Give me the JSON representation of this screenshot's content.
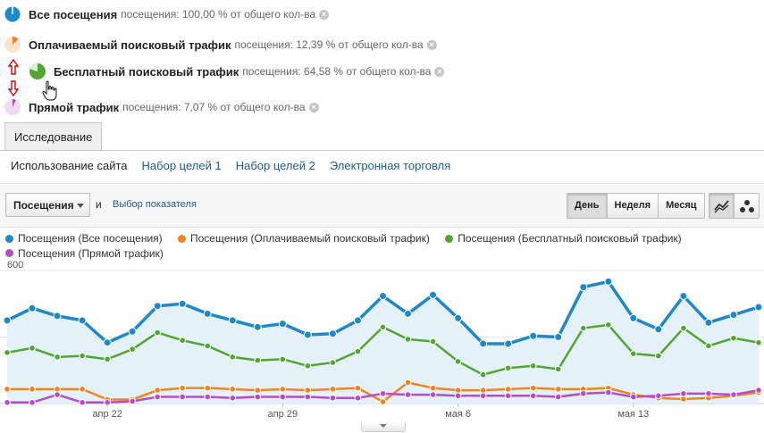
{
  "segments": [
    {
      "name": "Все посещения",
      "meta": "посещения: 100,00 % от общего кол-ва",
      "color": "#1e88c8",
      "share": 1.0
    },
    {
      "name": "Оплачиваемый поисковый трафик",
      "meta": "посещения: 12,39 % от общего кол-ва",
      "color": "#f0851f",
      "share": 0.1239
    },
    {
      "name": "Бесплатный поисковый трафик",
      "meta": "посещения: 64,58 % от общего кол-ва",
      "color": "#52a633",
      "share": 0.6458
    },
    {
      "name": "Прямой трафик",
      "meta": "посещения: 7,07 % от общего кол-ва",
      "color": "#b54dc9",
      "share": 0.0707
    }
  ],
  "tabs": {
    "explore": "Исследование"
  },
  "subnav": [
    "Использование сайта",
    "Набор целей 1",
    "Набор целей 2",
    "Электронная торговля"
  ],
  "toolbar": {
    "metric": "Посещения",
    "and": "и",
    "choose_metric": "Выбор показателя",
    "periods": [
      "День",
      "Неделя",
      "Месяц"
    ],
    "active_period": "День"
  },
  "colors": {
    "blue": "#1e88c8",
    "orange": "#f0851f",
    "green": "#52a633",
    "purple": "#b54dc9",
    "fill": "#e5f1f8"
  },
  "chart_data": {
    "type": "line",
    "ylim": [
      0,
      600
    ],
    "y_ticks": [
      300,
      600
    ],
    "x_tick_labels": [
      "апр 22",
      "апр 29",
      "мая 6",
      "мая 13"
    ],
    "x_tick_index": [
      4,
      11,
      18,
      25
    ],
    "legend": [
      "Посещения (Все посещения)",
      "Посещения (Оплачиваемый поисковый трафик)",
      "Посещения (Бесплатный поисковый трафик)",
      "Посещения (Прямой трафик)"
    ],
    "series": [
      {
        "name": "Посещения (Все посещения)",
        "color": "#1e88c8",
        "values": [
          375,
          430,
          395,
          375,
          275,
          325,
          440,
          450,
          405,
          375,
          345,
          360,
          310,
          315,
          375,
          485,
          405,
          490,
          385,
          270,
          270,
          305,
          300,
          525,
          550,
          385,
          335,
          485,
          365,
          400,
          435
        ]
      },
      {
        "name": "Посещения (Оплачиваемый поисковый трафик)",
        "color": "#f0851f",
        "values": [
          65,
          65,
          65,
          65,
          18,
          18,
          60,
          70,
          70,
          65,
          60,
          65,
          60,
          65,
          70,
          8,
          95,
          70,
          60,
          60,
          65,
          70,
          65,
          65,
          70,
          40,
          25,
          20,
          25,
          35,
          50
        ]
      },
      {
        "name": "Посещения (Бесплатный поисковый трафик)",
        "color": "#52a633",
        "values": [
          230,
          250,
          210,
          215,
          200,
          245,
          320,
          285,
          260,
          210,
          195,
          200,
          170,
          185,
          235,
          345,
          290,
          280,
          190,
          130,
          160,
          170,
          155,
          340,
          355,
          225,
          215,
          340,
          260,
          295,
          275
        ]
      },
      {
        "name": "Посещения (Прямой трафик)",
        "color": "#b54dc9",
        "values": [
          5,
          5,
          40,
          5,
          5,
          10,
          30,
          30,
          30,
          25,
          30,
          30,
          30,
          25,
          25,
          45,
          40,
          40,
          35,
          35,
          35,
          35,
          30,
          45,
          50,
          30,
          35,
          45,
          45,
          40,
          60
        ]
      }
    ]
  }
}
